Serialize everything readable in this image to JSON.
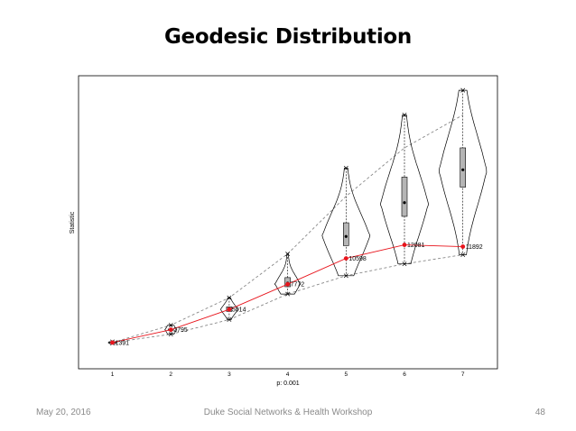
{
  "slide": {
    "title": "Geodesic Distribution",
    "footer_date": "May 20, 2016",
    "footer_center": "Duke Social Networks & Health Workshop",
    "page_number": "48"
  },
  "chart_data": {
    "type": "violin",
    "title": "",
    "xlabel": "p: 0.001",
    "ylabel": "Statistic",
    "categories": [
      "1",
      "2",
      "3",
      "4",
      "5",
      "6",
      "7"
    ],
    "observed": {
      "values": [
        1391,
        2795,
        5014,
        7772,
        10598,
        12081,
        11892
      ],
      "labels": [
        "1391",
        "2795",
        "5014",
        "7772",
        "10598",
        "12081",
        "11892"
      ],
      "color": "#e8141c"
    },
    "simulated": [
      {
        "x": 1,
        "median": 1391,
        "q1": 1365,
        "q3": 1415,
        "min": 1300,
        "max": 1480,
        "mean": 1391
      },
      {
        "x": 2,
        "median": 2795,
        "q1": 2740,
        "q3": 2870,
        "min": 2300,
        "max": 3300,
        "mean": 2800
      },
      {
        "x": 3,
        "median": 5014,
        "q1": 4800,
        "q3": 5300,
        "min": 3900,
        "max": 6300,
        "mean": 5050
      },
      {
        "x": 4,
        "median": 7800,
        "q1": 7500,
        "q3": 8500,
        "min": 6700,
        "max": 11100,
        "mean": 7900
      },
      {
        "x": 5,
        "median": 13050,
        "q1": 12000,
        "q3": 14500,
        "min": 8700,
        "max": 20500,
        "mean": 13000
      },
      {
        "x": 6,
        "median": 16600,
        "q1": 15200,
        "q3": 19500,
        "min": 10000,
        "max": 26300,
        "mean": 16700
      },
      {
        "x": 7,
        "median": 20200,
        "q1": 18400,
        "q3": 22700,
        "min": 11000,
        "max": 29000,
        "mean": 20300
      }
    ],
    "reference_lines": {
      "upper": [
        1391,
        3300,
        6300,
        11100,
        17400,
        22700,
        26300
      ],
      "lower": [
        1391,
        2300,
        3900,
        6700,
        8700,
        10000,
        11000
      ]
    },
    "ylim": [
      0,
      30000
    ],
    "grid": false,
    "legend": "none"
  }
}
